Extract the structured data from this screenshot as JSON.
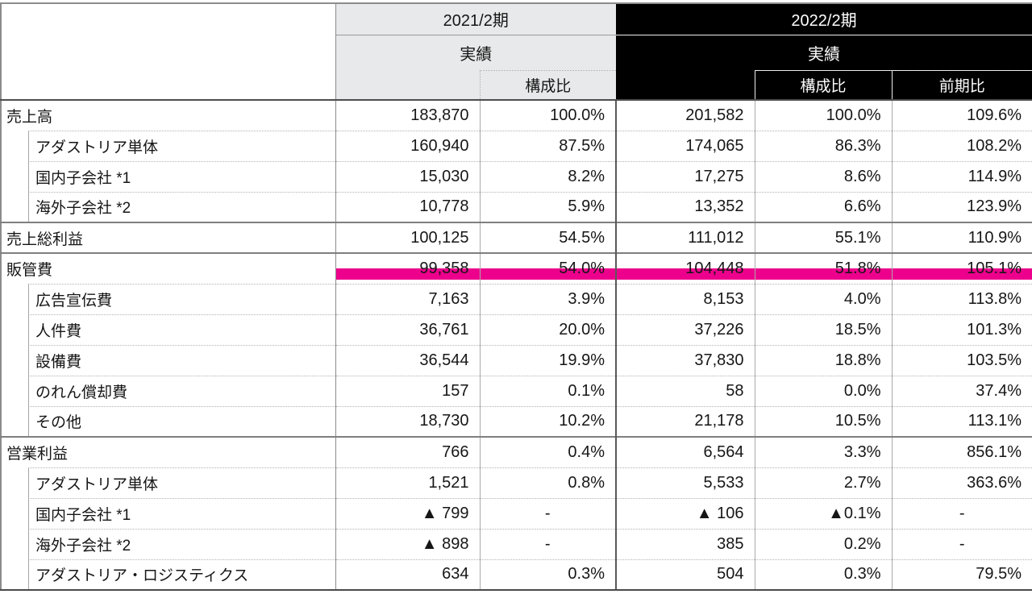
{
  "table": {
    "header": {
      "period1_title": "2021/2期",
      "period1_subtitle": "実績",
      "period1_col_share": "構成比",
      "period2_title": "2022/2期",
      "period2_subtitle": "実績",
      "period2_col_share": "構成比",
      "period2_col_yoy": "前期比"
    },
    "colors": {
      "highlight": "#EC008C",
      "header_dark_bg": "#000000",
      "header_dark_text": "#FFFFFF",
      "header_light_bg": "#E8E9EA"
    },
    "negative_marker": "▲",
    "rows": [
      {
        "label": "売上高",
        "indent": false,
        "highlight": false,
        "values": [
          "183,870",
          "100.0%",
          "201,582",
          "100.0%",
          "109.6%"
        ]
      },
      {
        "label": "アダストリア単体",
        "indent": true,
        "highlight": false,
        "values": [
          "160,940",
          "87.5%",
          "174,065",
          "86.3%",
          "108.2%"
        ]
      },
      {
        "label": "国内子会社 *1",
        "indent": true,
        "highlight": false,
        "values": [
          "15,030",
          "8.2%",
          "17,275",
          "8.6%",
          "114.9%"
        ]
      },
      {
        "label": "海外子会社 *2",
        "indent": true,
        "highlight": false,
        "values": [
          "10,778",
          "5.9%",
          "13,352",
          "6.6%",
          "123.9%"
        ]
      },
      {
        "label": "売上総利益",
        "indent": false,
        "highlight": false,
        "values": [
          "100,125",
          "54.5%",
          "111,012",
          "55.1%",
          "110.9%"
        ]
      },
      {
        "label": "販管費",
        "indent": false,
        "highlight": true,
        "values": [
          "99,358",
          "54.0%",
          "104,448",
          "51.8%",
          "105.1%"
        ]
      },
      {
        "label": "広告宣伝費",
        "indent": true,
        "highlight": false,
        "values": [
          "7,163",
          "3.9%",
          "8,153",
          "4.0%",
          "113.8%"
        ]
      },
      {
        "label": "人件費",
        "indent": true,
        "highlight": false,
        "values": [
          "36,761",
          "20.0%",
          "37,226",
          "18.5%",
          "101.3%"
        ]
      },
      {
        "label": "設備費",
        "indent": true,
        "highlight": false,
        "values": [
          "36,544",
          "19.9%",
          "37,830",
          "18.8%",
          "103.5%"
        ]
      },
      {
        "label": "のれん償却費",
        "indent": true,
        "highlight": false,
        "values": [
          "157",
          "0.1%",
          "58",
          "0.0%",
          "37.4%"
        ]
      },
      {
        "label": "その他",
        "indent": true,
        "highlight": false,
        "values": [
          "18,730",
          "10.2%",
          "21,178",
          "10.5%",
          "113.1%"
        ]
      },
      {
        "label": "営業利益",
        "indent": false,
        "highlight": false,
        "values": [
          "766",
          "0.4%",
          "6,564",
          "3.3%",
          "856.1%"
        ]
      },
      {
        "label": "アダストリア単体",
        "indent": true,
        "highlight": false,
        "values": [
          "1,521",
          "0.8%",
          "5,533",
          "2.7%",
          "363.6%"
        ]
      },
      {
        "label": "国内子会社 *1",
        "indent": true,
        "highlight": false,
        "values": [
          "▲ 799",
          "-",
          "▲ 106",
          "▲0.1%",
          "-"
        ]
      },
      {
        "label": "海外子会社 *2",
        "indent": true,
        "highlight": false,
        "values": [
          "▲ 898",
          "-",
          "385",
          "0.2%",
          "-"
        ]
      },
      {
        "label": "アダストリア・ロジスティクス",
        "indent": true,
        "highlight": false,
        "values": [
          "634",
          "0.3%",
          "504",
          "0.3%",
          "79.5%"
        ]
      }
    ]
  }
}
